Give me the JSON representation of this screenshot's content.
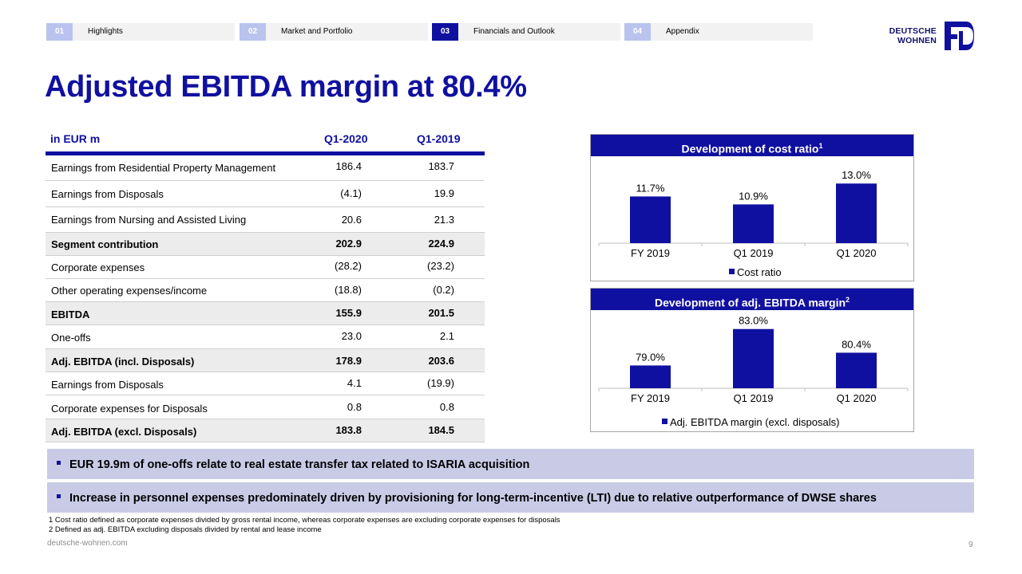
{
  "nav": {
    "tabs": [
      {
        "num": "01",
        "label": "Highlights",
        "active": false
      },
      {
        "num": "02",
        "label": "Market and Portfolio",
        "active": false
      },
      {
        "num": "03",
        "label": "Financials and Outlook",
        "active": true
      },
      {
        "num": "04",
        "label": "Appendix",
        "active": false
      }
    ]
  },
  "logo": {
    "line1": "DEUTSCHE",
    "line2": "WOHNEN"
  },
  "title": "Adjusted EBITDA margin at 80.4%",
  "table": {
    "headers": [
      "in EUR m",
      "Q1-2020",
      "Q1-2019"
    ],
    "rows": [
      {
        "label": "Earnings from Residential Property Management",
        "q1_2020": "186.4",
        "q1_2019": "183.7",
        "bold": false
      },
      {
        "label": "Earnings from Disposals",
        "q1_2020": "(4.1)",
        "q1_2019": "19.9",
        "bold": false
      },
      {
        "label": "Earnings from Nursing and Assisted Living",
        "q1_2020": "20.6",
        "q1_2019": "21.3",
        "bold": false
      },
      {
        "label": "Segment contribution",
        "q1_2020": "202.9",
        "q1_2019": "224.9",
        "bold": true
      },
      {
        "label": "Corporate expenses",
        "q1_2020": "(28.2)",
        "q1_2019": "(23.2)",
        "bold": false
      },
      {
        "label": "Other operating expenses/income",
        "q1_2020": "(18.8)",
        "q1_2019": "(0.2)",
        "bold": false
      },
      {
        "label": "EBITDA",
        "q1_2020": "155.9",
        "q1_2019": "201.5",
        "bold": true
      },
      {
        "label": "One-offs",
        "q1_2020": "23.0",
        "q1_2019": "2.1",
        "bold": false
      },
      {
        "label": "Adj. EBITDA (incl. Disposals)",
        "q1_2020": "178.9",
        "q1_2019": "203.6",
        "bold": true
      },
      {
        "label": "Earnings from Disposals",
        "q1_2020": "4.1",
        "q1_2019": "(19.9)",
        "bold": false
      },
      {
        "label": "Corporate expenses for Disposals",
        "q1_2020": "0.8",
        "q1_2019": "0.8",
        "bold": false
      },
      {
        "label": "Adj. EBITDA (excl. Disposals)",
        "q1_2020": "183.8",
        "q1_2019": "184.5",
        "bold": true
      }
    ]
  },
  "colors": {
    "brand": "#1010a0",
    "bar": "#1010a0",
    "bullet_bg": "#c9cbe6"
  },
  "chart_data": [
    {
      "type": "bar",
      "title": "Development of cost ratio",
      "title_sup": "1",
      "categories": [
        "FY 2019",
        "Q1 2019",
        "Q1 2020"
      ],
      "series": [
        {
          "name": "Cost ratio",
          "values": [
            11.7,
            10.9,
            13.0
          ]
        }
      ],
      "data_labels": [
        "11.7%",
        "10.9%",
        "13.0%"
      ],
      "ylim": [
        7,
        13.5
      ],
      "legend": "bottom"
    },
    {
      "type": "bar",
      "title": "Development of adj. EBITDA margin",
      "title_sup": "2",
      "categories": [
        "FY 2019",
        "Q1 2019",
        "Q1 2020"
      ],
      "series": [
        {
          "name": "Adj. EBITDA margin (excl. disposals)",
          "values": [
            79.0,
            83.0,
            80.4
          ]
        }
      ],
      "data_labels": [
        "79.0%",
        "83.0%",
        "80.4%"
      ],
      "ylim": [
        76.5,
        83.5
      ],
      "legend": "bottom"
    }
  ],
  "bullets": [
    "EUR 19.9m of one-offs relate to real estate transfer tax related to ISARIA acquisition",
    "Increase in personnel expenses predominately driven by provisioning for long-term-incentive (LTI) due to relative outperformance of DWSE shares"
  ],
  "footnotes": [
    "1 Cost ratio defined as corporate expenses divided by gross rental income, whereas corporate expenses are excluding corporate expenses for disposals",
    "2 Defined as adj. EBITDA excluding disposals divided by rental and lease income"
  ],
  "footer": {
    "url": "deutsche-wohnen.com",
    "page": "9"
  }
}
